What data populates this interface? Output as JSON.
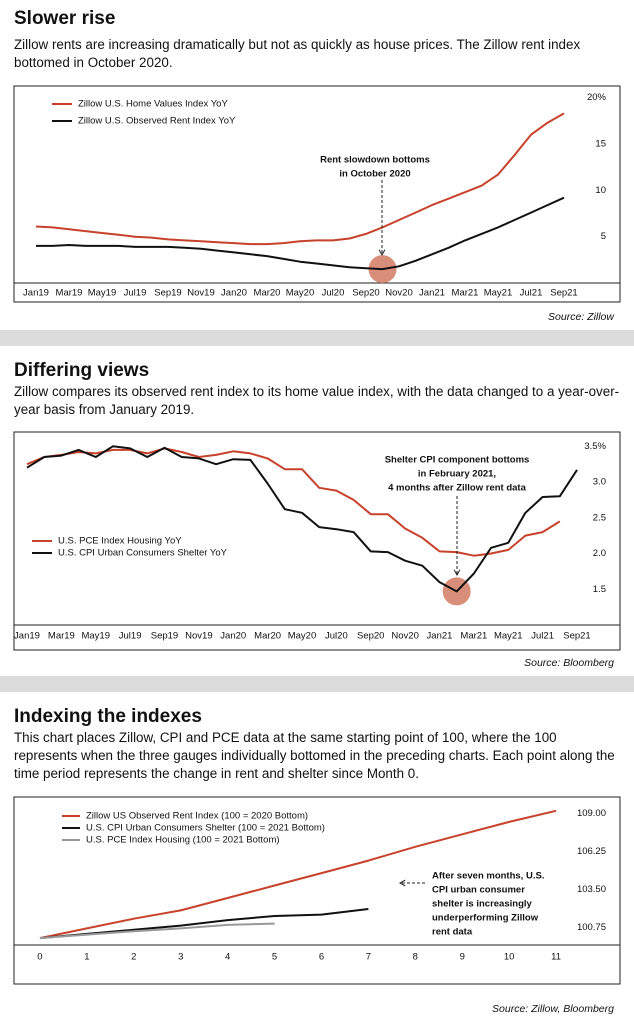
{
  "chart_data": [
    {
      "type": "line",
      "title": "Slower rise",
      "subtitle": "Zillow rents are increasing dramatically but not as quickly as house prices. The Zillow rent index bottomed in October 2020.",
      "source": "Source: Zillow",
      "annotation": [
        "Rent slowdown bottoms",
        "in October 2020"
      ],
      "categories": [
        "Jan19",
        null,
        "Mar19",
        null,
        "May19",
        null,
        "Jul19",
        null,
        "Sep19",
        null,
        "Nov19",
        null,
        "Jan20",
        null,
        "Mar20",
        null,
        "May20",
        null,
        "Jul20",
        null,
        "Sep20",
        null,
        "Nov20",
        null,
        "Jan21",
        null,
        "Mar21",
        null,
        "May21",
        null,
        "Jul21",
        null,
        "Sep21"
      ],
      "series": [
        {
          "name": "Zillow U.S. Home Values Index YoY",
          "color": "#c8412a",
          "values": [
            6.1,
            6.0,
            5.8,
            5.6,
            5.4,
            5.2,
            5.0,
            4.9,
            4.7,
            4.6,
            4.5,
            4.4,
            4.3,
            4.2,
            4.2,
            4.3,
            4.5,
            4.6,
            4.6,
            4.8,
            5.3,
            6.0,
            6.8,
            7.6,
            8.4,
            9.1,
            9.8,
            10.5,
            11.7,
            13.8,
            16.0,
            17.3,
            18.3
          ]
        },
        {
          "name": "Zillow U.S. Observed Rent Index YoY",
          "color": "#111111",
          "values": [
            4.0,
            4.0,
            4.1,
            4.0,
            4.0,
            4.0,
            3.9,
            3.9,
            3.9,
            3.8,
            3.7,
            3.5,
            3.3,
            3.1,
            2.9,
            2.6,
            2.3,
            2.1,
            1.9,
            1.7,
            1.6,
            1.5,
            1.8,
            2.4,
            3.1,
            3.8,
            4.6,
            5.3,
            6.0,
            6.8,
            7.6,
            8.4,
            9.2
          ]
        }
      ],
      "ylim": [
        0,
        20.5
      ],
      "yticks": [
        5,
        10,
        15,
        {
          "value": 20,
          "label": "20%"
        }
      ],
      "grid": false,
      "legend": "top-left"
    },
    {
      "type": "line",
      "title": "Differing views",
      "subtitle": "Zillow compares its observed rent index to its home value index, with the data changed to a year-over-year basis from January 2019.",
      "source": "Source: Bloomberg",
      "annotation": [
        "Shelter CPI component bottoms",
        "in February 2021,",
        "4 months after Zillow rent data"
      ],
      "categories": [
        "Jan19",
        null,
        "Mar19",
        null,
        "May19",
        null,
        "Jul19",
        null,
        "Sep19",
        null,
        "Nov19",
        null,
        "Jan20",
        null,
        "Mar20",
        null,
        "May20",
        null,
        "Jul20",
        null,
        "Sep20",
        null,
        "Nov20",
        null,
        "Jan21",
        null,
        "Mar21",
        null,
        "May21",
        null,
        "Jul21",
        null,
        "Sep21"
      ],
      "series": [
        {
          "name": "U.S. PCE Index Housing YoY",
          "color": "#c8412a",
          "values": [
            3.25,
            3.35,
            3.38,
            3.42,
            3.4,
            3.45,
            3.45,
            3.4,
            3.47,
            3.42,
            3.35,
            3.38,
            3.43,
            3.4,
            3.33,
            3.18,
            3.18,
            2.92,
            2.88,
            2.75,
            2.55,
            2.55,
            2.35,
            2.22,
            2.03,
            2.02,
            1.97,
            2.0,
            2.05,
            2.25,
            2.3,
            2.45,
            null
          ]
        },
        {
          "name": "U.S. CPI Urban Consumers Shelter YoY",
          "color": "#111111",
          "values": [
            3.2,
            3.35,
            3.37,
            3.45,
            3.35,
            3.5,
            3.47,
            3.35,
            3.48,
            3.35,
            3.33,
            3.25,
            3.32,
            3.31,
            2.98,
            2.62,
            2.57,
            2.37,
            2.34,
            2.3,
            2.03,
            2.02,
            1.9,
            1.83,
            1.6,
            1.47,
            1.72,
            2.08,
            2.15,
            2.57,
            2.79,
            2.8,
            3.17
          ]
        }
      ],
      "ylim": [
        1.0,
        3.7
      ],
      "yticks": [
        1.5,
        {
          "value": 2,
          "label": "2.0"
        },
        2.5,
        {
          "value": 3,
          "label": "3.0"
        },
        {
          "value": 3.5,
          "label": "3.5%"
        }
      ],
      "grid": false,
      "legend": "bottom-left"
    },
    {
      "type": "line",
      "title": "Indexing the indexes",
      "subtitle": "This chart places Zillow, CPI and PCE data at the same starting point of 100, where the 100 represents when the three gauges individually bottomed in the preceding charts. Each point along the time period represents the change in rent and shelter since Month 0.",
      "source": "Source: Zillow, Bloomberg",
      "annotation": [
        "After seven months, U.S.",
        "CPI urban consumer",
        "shelter is increasingly",
        "underperforming Zillow",
        "rent data"
      ],
      "x": [
        0,
        1,
        2,
        3,
        4,
        5,
        6,
        7,
        8,
        9,
        10,
        11
      ],
      "series": [
        {
          "name": "Zillow US Observed Rent Index (100 = 2020 Bottom)",
          "color": "#c8412a",
          "values": [
            100,
            100.7,
            101.4,
            102.0,
            102.9,
            103.8,
            104.7,
            105.6,
            106.6,
            107.5,
            108.4,
            109.2
          ]
        },
        {
          "name": "U.S. CPI Urban Consumers Shelter (100 = 2021 Bottom)",
          "color": "#111111",
          "values": [
            100,
            100.3,
            100.6,
            100.9,
            101.3,
            101.6,
            101.7,
            102.1,
            null,
            null,
            null,
            null
          ]
        },
        {
          "name": "U.S. PCE Index Housing (100 = 2021 Bottom)",
          "color": "#999999",
          "values": [
            100,
            100.25,
            100.5,
            100.7,
            100.95,
            101.05,
            null,
            null,
            null,
            null,
            null,
            null
          ]
        }
      ],
      "xlim": [
        -0.5,
        12
      ],
      "xticks": [
        0,
        1,
        2,
        3,
        4,
        5,
        6,
        7,
        8,
        9,
        10,
        11
      ],
      "ylim": [
        99.5,
        110.2
      ],
      "yticks": [
        100.75,
        {
          "value": 103.5,
          "label": "103.50"
        },
        106.25,
        {
          "value": 109,
          "label": "109.00"
        }
      ],
      "grid": false,
      "legend": "top-left"
    }
  ]
}
